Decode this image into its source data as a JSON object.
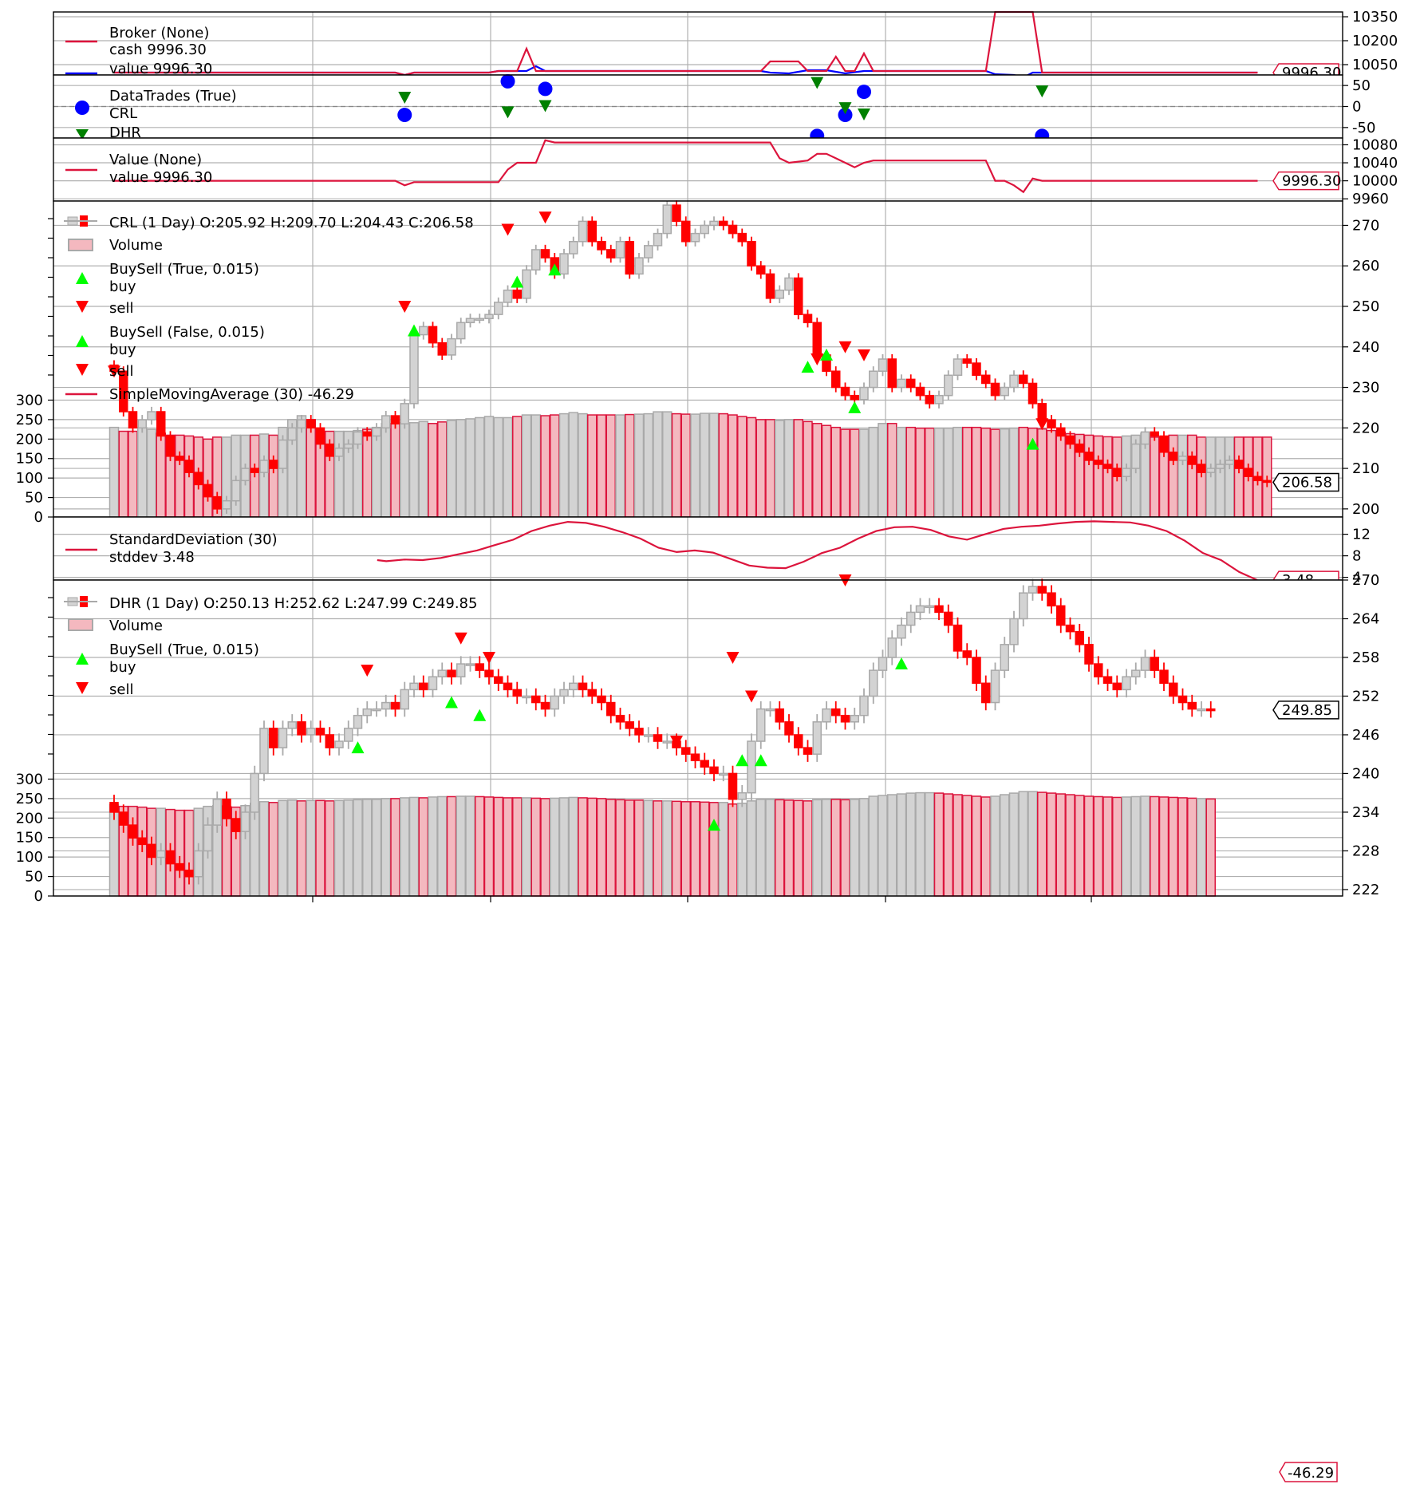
{
  "colors": {
    "up_body": "#d3d3d3",
    "up_edge": "#a9a9a9",
    "down": "#ff0000",
    "vol_up_fill": "#d3d3d3",
    "vol_up_edge": "#a9a9a9",
    "vol_down_fill": "#f4b8bf",
    "vol_down_edge": "#dc143c",
    "line": "#dc143c",
    "value_line": "#0000ff",
    "grid": "#b0b0b0",
    "buy": "#00ff00",
    "sell": "#ff0000",
    "trade_crl": "#0000ff",
    "trade_dhr": "#008000"
  },
  "chart_data": [
    {
      "id": "broker",
      "type": "line",
      "legend": [
        "Broker (None)",
        "cash 9996.30",
        "value 9996.30"
      ],
      "y_ticks": [
        "10350",
        "10200",
        "10050"
      ],
      "last_label": "9996.30",
      "ylim": [
        9985,
        10380
      ],
      "series": [
        {
          "name": "cash",
          "color": "line",
          "points": [
            [
              0,
              10000
            ],
            [
              30,
              10000
            ],
            [
              31,
              9985
            ],
            [
              32,
              10000
            ],
            [
              40,
              10000
            ],
            [
              41,
              10010
            ],
            [
              43,
              10010
            ],
            [
              44,
              10150
            ],
            [
              45,
              10010
            ],
            [
              69,
              10010
            ],
            [
              70,
              10070
            ],
            [
              73,
              10070
            ],
            [
              74,
              10010
            ],
            [
              76,
              10010
            ],
            [
              77,
              10100
            ],
            [
              78,
              10010
            ],
            [
              79,
              10010
            ],
            [
              80,
              10120
            ],
            [
              81,
              10010
            ],
            [
              93,
              10010
            ],
            [
              94,
              10380
            ],
            [
              98,
              10380
            ],
            [
              99,
              10000
            ],
            [
              122,
              10000
            ]
          ]
        },
        {
          "name": "value",
          "color": "value_line",
          "points": [
            [
              0,
              10000
            ],
            [
              30,
              10000
            ],
            [
              31,
              9985
            ],
            [
              32,
              10000
            ],
            [
              40,
              10000
            ],
            [
              41,
              10010
            ],
            [
              44,
              10010
            ],
            [
              45,
              10040
            ],
            [
              46,
              10010
            ],
            [
              69,
              10010
            ],
            [
              70,
              10000
            ],
            [
              72,
              9995
            ],
            [
              74,
              10015
            ],
            [
              76,
              10015
            ],
            [
              77,
              10005
            ],
            [
              78,
              9995
            ],
            [
              80,
              10010
            ],
            [
              93,
              10010
            ],
            [
              94,
              9990
            ],
            [
              96,
              9985
            ],
            [
              97,
              9970
            ],
            [
              98,
              10000
            ],
            [
              122,
              10000
            ]
          ]
        }
      ]
    },
    {
      "id": "datatrades",
      "type": "scatter",
      "legend": [
        "DataTrades (True)",
        "CRL",
        "DHR"
      ],
      "y_ticks": [
        "50",
        "0",
        "-50"
      ],
      "ylim": [
        -75,
        75
      ],
      "crl": [
        [
          31,
          -20
        ],
        [
          42,
          60
        ],
        [
          46,
          42
        ],
        [
          75,
          -70
        ],
        [
          78,
          -20
        ],
        [
          80,
          35
        ],
        [
          99,
          -70
        ]
      ],
      "dhr": [
        [
          31,
          20
        ],
        [
          42,
          -15
        ],
        [
          46,
          0
        ],
        [
          75,
          55
        ],
        [
          78,
          -5
        ],
        [
          80,
          -20
        ],
        [
          99,
          35
        ]
      ]
    },
    {
      "id": "value",
      "type": "line",
      "legend": [
        "Value (None)",
        "value 9996.30"
      ],
      "y_ticks": [
        "10080",
        "10040",
        "10000",
        "9960"
      ],
      "last_label": "9996.30",
      "ylim": [
        9955,
        10095
      ],
      "series": [
        {
          "name": "value",
          "color": "line",
          "points": [
            [
              0,
              10000
            ],
            [
              30,
              10000
            ],
            [
              31,
              9990
            ],
            [
              32,
              9997
            ],
            [
              41,
              9997
            ],
            [
              42,
              10025
            ],
            [
              43,
              10040
            ],
            [
              45,
              10040
            ],
            [
              46,
              10090
            ],
            [
              47,
              10085
            ],
            [
              70,
              10085
            ],
            [
              71,
              10050
            ],
            [
              72,
              10040
            ],
            [
              74,
              10045
            ],
            [
              75,
              10060
            ],
            [
              76,
              10060
            ],
            [
              77,
              10050
            ],
            [
              78,
              10040
            ],
            [
              79,
              10030
            ],
            [
              80,
              10040
            ],
            [
              81,
              10045
            ],
            [
              93,
              10045
            ],
            [
              94,
              10000
            ],
            [
              95,
              10000
            ],
            [
              96,
              9990
            ],
            [
              97,
              9975
            ],
            [
              98,
              10005
            ],
            [
              99,
              10000
            ],
            [
              122,
              10000
            ]
          ]
        }
      ]
    },
    {
      "id": "crl",
      "type": "candlestick",
      "legend": [
        "CRL (1 Day) O:205.92 H:209.70 L:204.43 C:206.58",
        "Volume",
        "BuySell (True, 0.015)",
        "buy",
        "sell",
        "BuySell (False, 0.015)",
        "buy",
        "sell",
        "SimpleMovingAverage (30) -46.29"
      ],
      "y_ticks": [
        "270",
        "260",
        "250",
        "240",
        "230",
        "220",
        "210",
        "200"
      ],
      "vol_ticks": [
        "300",
        "250",
        "200",
        "150",
        "100",
        "50",
        "0"
      ],
      "last_label": "206.58",
      "sma_label": "-46.29",
      "ylim": [
        198,
        276
      ],
      "vol_max": 300,
      "closes": [
        234.0,
        224.0,
        220.0,
        222.0,
        224.0,
        218.0,
        213.0,
        212.0,
        209.0,
        206.0,
        203.0,
        200.0,
        202.0,
        207.0,
        210.0,
        209.0,
        212.0,
        210.0,
        217.0,
        220.0,
        222.0,
        220.0,
        216.0,
        213.0,
        215.0,
        216.0,
        219.0,
        218.0,
        220.0,
        223.0,
        221.0,
        226.0,
        243.0,
        245.0,
        241.0,
        238.0,
        242.0,
        246.0,
        247.0,
        247.0,
        248.0,
        251.0,
        254.0,
        252.0,
        259.0,
        264.0,
        262.0,
        258.0,
        263.0,
        266.0,
        271.0,
        266.0,
        264.0,
        262.0,
        266.0,
        258.0,
        262.0,
        265.0,
        268.0,
        275.0,
        271.0,
        266.0,
        268.0,
        270.0,
        271.0,
        270.0,
        268.0,
        266.0,
        260.0,
        258.0,
        252.0,
        254.0,
        257.0,
        248.0,
        246.0,
        238.0,
        234.0,
        230.0,
        228.0,
        227.0,
        230.0,
        234.0,
        237.0,
        230.0,
        232.0,
        230.0,
        228.0,
        226.0,
        228.0,
        233.0,
        237.0,
        236.0,
        233.0,
        231.0,
        228.0,
        230.0,
        233.0,
        231.0,
        226.0,
        222.0,
        220.0,
        218.0,
        216.0,
        214.0,
        212.0,
        211.0,
        210.0,
        208.0,
        210.0,
        216.0,
        219.0,
        218.0,
        214.0,
        212.0,
        213.0,
        211.0,
        209.0,
        210.0,
        211.0,
        212.0,
        210.0,
        208.0,
        207.0,
        206.58
      ],
      "volumes": [
        230,
        220,
        220,
        230,
        225,
        215,
        210,
        210,
        208,
        205,
        200,
        205,
        205,
        210,
        210,
        210,
        213,
        210,
        230,
        250,
        260,
        250,
        215,
        220,
        220,
        220,
        222,
        225,
        230,
        240,
        240,
        242,
        242,
        245,
        240,
        244,
        248,
        250,
        252,
        255,
        258,
        255,
        255,
        258,
        262,
        262,
        260,
        262,
        265,
        268,
        265,
        262,
        262,
        262,
        262,
        263,
        264,
        265,
        270,
        270,
        265,
        264,
        264,
        266,
        266,
        265,
        262,
        258,
        255,
        250,
        250,
        248,
        250,
        250,
        245,
        240,
        235,
        230,
        225,
        225,
        225,
        230,
        240,
        240,
        230,
        230,
        228,
        228,
        228,
        228,
        230,
        230,
        230,
        228,
        225,
        226,
        228,
        230,
        228,
        226,
        222,
        218,
        214,
        212,
        210,
        208,
        206,
        205,
        208,
        210,
        215,
        205,
        205,
        210,
        210,
        210,
        205,
        205,
        205,
        205,
        205,
        205,
        205,
        205
      ]
    },
    {
      "id": "stddev",
      "type": "line",
      "legend": [
        "StandardDeviation (30)",
        "stddev 3.48"
      ],
      "y_ticks": [
        "12",
        "8",
        "4"
      ],
      "last_label": "3.48",
      "ylim": [
        3.5,
        15.2
      ],
      "series": [
        {
          "name": "stddev",
          "color": "line",
          "points": [
            [
              29,
              7.2
            ],
            [
              30,
              7.0
            ],
            [
              32,
              7.3
            ],
            [
              34,
              7.2
            ],
            [
              36,
              7.6
            ],
            [
              38,
              8.3
            ],
            [
              40,
              9.0
            ],
            [
              42,
              10.0
            ],
            [
              44,
              11.0
            ],
            [
              46,
              12.6
            ],
            [
              48,
              13.6
            ],
            [
              50,
              14.3
            ],
            [
              52,
              14.1
            ],
            [
              54,
              13.4
            ],
            [
              56,
              12.4
            ],
            [
              58,
              11.2
            ],
            [
              60,
              9.5
            ],
            [
              62,
              8.7
            ],
            [
              64,
              9.0
            ],
            [
              66,
              8.6
            ],
            [
              68,
              7.4
            ],
            [
              70,
              6.2
            ],
            [
              72,
              5.8
            ],
            [
              74,
              5.7
            ],
            [
              76,
              6.9
            ],
            [
              78,
              8.5
            ],
            [
              80,
              9.5
            ],
            [
              82,
              11.2
            ],
            [
              84,
              12.6
            ],
            [
              86,
              13.3
            ],
            [
              88,
              13.4
            ],
            [
              90,
              12.8
            ],
            [
              92,
              11.6
            ],
            [
              94,
              11.0
            ],
            [
              96,
              12.0
            ],
            [
              98,
              13.0
            ],
            [
              100,
              13.4
            ],
            [
              102,
              13.6
            ],
            [
              104,
              14.0
            ],
            [
              106,
              14.3
            ],
            [
              108,
              14.4
            ],
            [
              110,
              14.3
            ],
            [
              112,
              14.2
            ],
            [
              114,
              13.6
            ],
            [
              116,
              12.6
            ],
            [
              118,
              10.8
            ],
            [
              120,
              8.5
            ],
            [
              122,
              7.2
            ],
            [
              124,
              5.0
            ],
            [
              126,
              3.48
            ]
          ]
        }
      ]
    },
    {
      "id": "dhr",
      "type": "candlestick",
      "legend": [
        "DHR (1 Day) O:250.13 H:252.62 L:247.99 C:249.85",
        "Volume",
        "BuySell (True, 0.015)",
        "buy",
        "sell"
      ],
      "y_ticks": [
        "270",
        "264",
        "258",
        "252",
        "246",
        "240",
        "234",
        "228",
        "222"
      ],
      "vol_ticks": [
        "300",
        "250",
        "200",
        "150",
        "100",
        "50",
        "0"
      ],
      "last_label": "249.85",
      "ylim": [
        221,
        270
      ],
      "vol_max": 300,
      "closes": [
        234.0,
        232.0,
        230.0,
        229.0,
        227.0,
        228.0,
        226.0,
        225.0,
        224.0,
        228.0,
        232.0,
        236.0,
        233.0,
        231.0,
        234.0,
        240.0,
        247.0,
        244.0,
        247.0,
        248.0,
        246.0,
        247.0,
        246.0,
        244.0,
        245.0,
        247.0,
        249.0,
        250.0,
        250.0,
        251.0,
        250.0,
        253.0,
        254.0,
        253.0,
        255.0,
        256.0,
        255.0,
        257.0,
        257.0,
        256.0,
        255.0,
        254.0,
        253.0,
        252.0,
        252.0,
        251.0,
        250.0,
        252.0,
        253.0,
        254.0,
        253.0,
        252.0,
        251.0,
        249.0,
        248.0,
        247.0,
        246.0,
        246.0,
        245.0,
        245.0,
        244.0,
        243.0,
        242.0,
        241.0,
        240.0,
        240.0,
        236.0,
        237.0,
        245.0,
        250.0,
        250.0,
        248.0,
        246.0,
        244.0,
        243.0,
        248.0,
        250.0,
        249.0,
        248.0,
        249.0,
        252.0,
        256.0,
        258.0,
        261.0,
        263.0,
        265.0,
        266.0,
        266.0,
        265.0,
        263.0,
        259.0,
        258.0,
        254.0,
        251.0,
        256.0,
        260.0,
        264.0,
        268.0,
        269.0,
        268.0,
        266.0,
        263.0,
        262.0,
        260.0,
        257.0,
        255.0,
        254.0,
        253.0,
        255.0,
        256.0,
        258.0,
        256.0,
        254.0,
        252.0,
        251.0,
        250.0,
        250.0,
        249.85
      ],
      "volumes": [
        235,
        230,
        230,
        228,
        225,
        225,
        222,
        220,
        220,
        225,
        230,
        232,
        230,
        228,
        232,
        238,
        242,
        240,
        245,
        246,
        244,
        245,
        245,
        244,
        245,
        246,
        247,
        248,
        248,
        250,
        250,
        252,
        253,
        252,
        254,
        255,
        255,
        256,
        256,
        255,
        254,
        253,
        252,
        252,
        252,
        251,
        250,
        251,
        252,
        253,
        252,
        251,
        250,
        248,
        247,
        246,
        246,
        245,
        244,
        244,
        243,
        242,
        242,
        241,
        240,
        240,
        236,
        238,
        244,
        248,
        248,
        247,
        246,
        245,
        244,
        247,
        248,
        248,
        247,
        248,
        250,
        256,
        258,
        260,
        262,
        264,
        265,
        265,
        264,
        262,
        260,
        258,
        256,
        254,
        256,
        260,
        264,
        268,
        268,
        266,
        264,
        262,
        260,
        258,
        256,
        255,
        254,
        253,
        254,
        255,
        256,
        255,
        254,
        253,
        252,
        251,
        250,
        249
      ]
    }
  ]
}
